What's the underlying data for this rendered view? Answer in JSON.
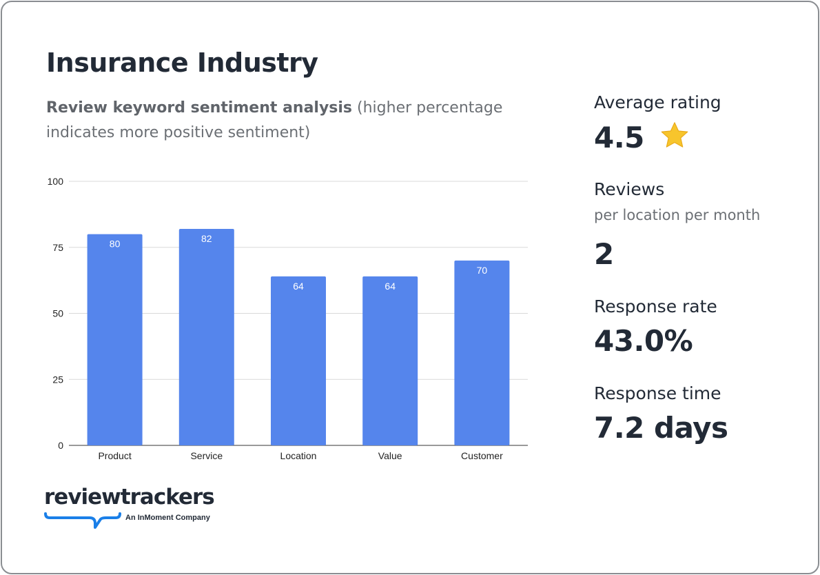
{
  "header": {
    "title": "Insurance Industry",
    "subtitle_bold": "Review keyword sentiment analysis",
    "subtitle_rest": " (higher percentage indicates more positive sentiment)"
  },
  "stats": {
    "avg_label": "Average rating",
    "avg_value": "4.5",
    "avg_icon": "star-icon",
    "reviews_label": "Reviews",
    "reviews_sub": "per location per month",
    "reviews_value": "2",
    "response_rate_label": "Response rate",
    "response_rate_value": "43.0%",
    "response_time_label": "Response time",
    "response_time_value": "7.2 days"
  },
  "logo": {
    "wordmark": "reviewtrackers",
    "tagline": "An InMoment Company"
  },
  "colors": {
    "bar": "#5585ec",
    "grid": "#d9d9d9",
    "star": "#f7c52c",
    "logo_accent": "#1a7fe8"
  },
  "chart_data": {
    "type": "bar",
    "categories": [
      "Product",
      "Service",
      "Location",
      "Value",
      "Customer"
    ],
    "values": [
      80,
      82,
      64,
      64,
      70
    ],
    "data_labels": [
      "80",
      "82",
      "64",
      "64",
      "70"
    ],
    "ylim": [
      0,
      100
    ],
    "yticks": [
      0,
      25,
      50,
      75,
      100
    ],
    "grid": true,
    "xlabel": "",
    "ylabel": ""
  }
}
